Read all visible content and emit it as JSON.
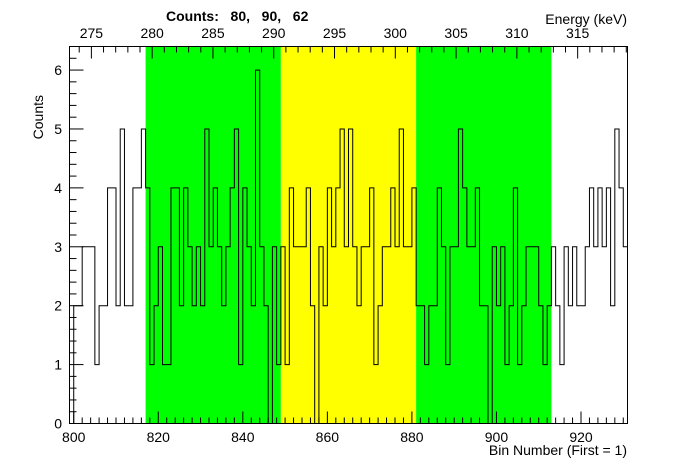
{
  "chart_data": {
    "type": "bar",
    "title": "Counts:   80,   90,   62",
    "xlabel": "Bin Number (First = 1)",
    "ylabel": "Counts",
    "x2label": "Energy (keV)",
    "xlim": [
      799,
      931
    ],
    "ylim": [
      0,
      6.4
    ],
    "x2lim": [
      273.2,
      319.1
    ],
    "xticks": [
      "800",
      "820",
      "840",
      "860",
      "880",
      "900",
      "920"
    ],
    "yticks": [
      "0",
      "1",
      "2",
      "3",
      "4",
      "5",
      "6"
    ],
    "x2ticks": [
      "275",
      "280",
      "285",
      "290",
      "295",
      "300",
      "305",
      "310",
      "315"
    ],
    "regions": [
      {
        "from": 817,
        "to": 849,
        "color": "#00ff00"
      },
      {
        "from": 849,
        "to": 881,
        "color": "#ffff00"
      },
      {
        "from": 881,
        "to": 913,
        "color": "#00ff00"
      }
    ],
    "bin_start": 800,
    "bin_width": 1,
    "counts": [
      2,
      2,
      3,
      3,
      3,
      1,
      2,
      2,
      4,
      4,
      2,
      5,
      2,
      2,
      4,
      4,
      5,
      4,
      1,
      2,
      3,
      1,
      1,
      4,
      4,
      2,
      4,
      3,
      2,
      3,
      2,
      5,
      3,
      4,
      3,
      2,
      3,
      4,
      5,
      1,
      4,
      3,
      2,
      6,
      3,
      2,
      0,
      3,
      1,
      3,
      1,
      4,
      3,
      3,
      3,
      4,
      2,
      0,
      3,
      2,
      4,
      3,
      4,
      5,
      3,
      5,
      3,
      2,
      3,
      3,
      4,
      1,
      2,
      3,
      3,
      4,
      3,
      5,
      3,
      3,
      4,
      2,
      2,
      1,
      2,
      2,
      4,
      3,
      1,
      3,
      3,
      5,
      4,
      3,
      3,
      4,
      2,
      2,
      0,
      3,
      2,
      3,
      1,
      2,
      4,
      1,
      2,
      3,
      3,
      3,
      2,
      1,
      2,
      3,
      2,
      1,
      3,
      2,
      3,
      2,
      2,
      3,
      4,
      3,
      4,
      3,
      4,
      2,
      5,
      4,
      3
    ]
  }
}
